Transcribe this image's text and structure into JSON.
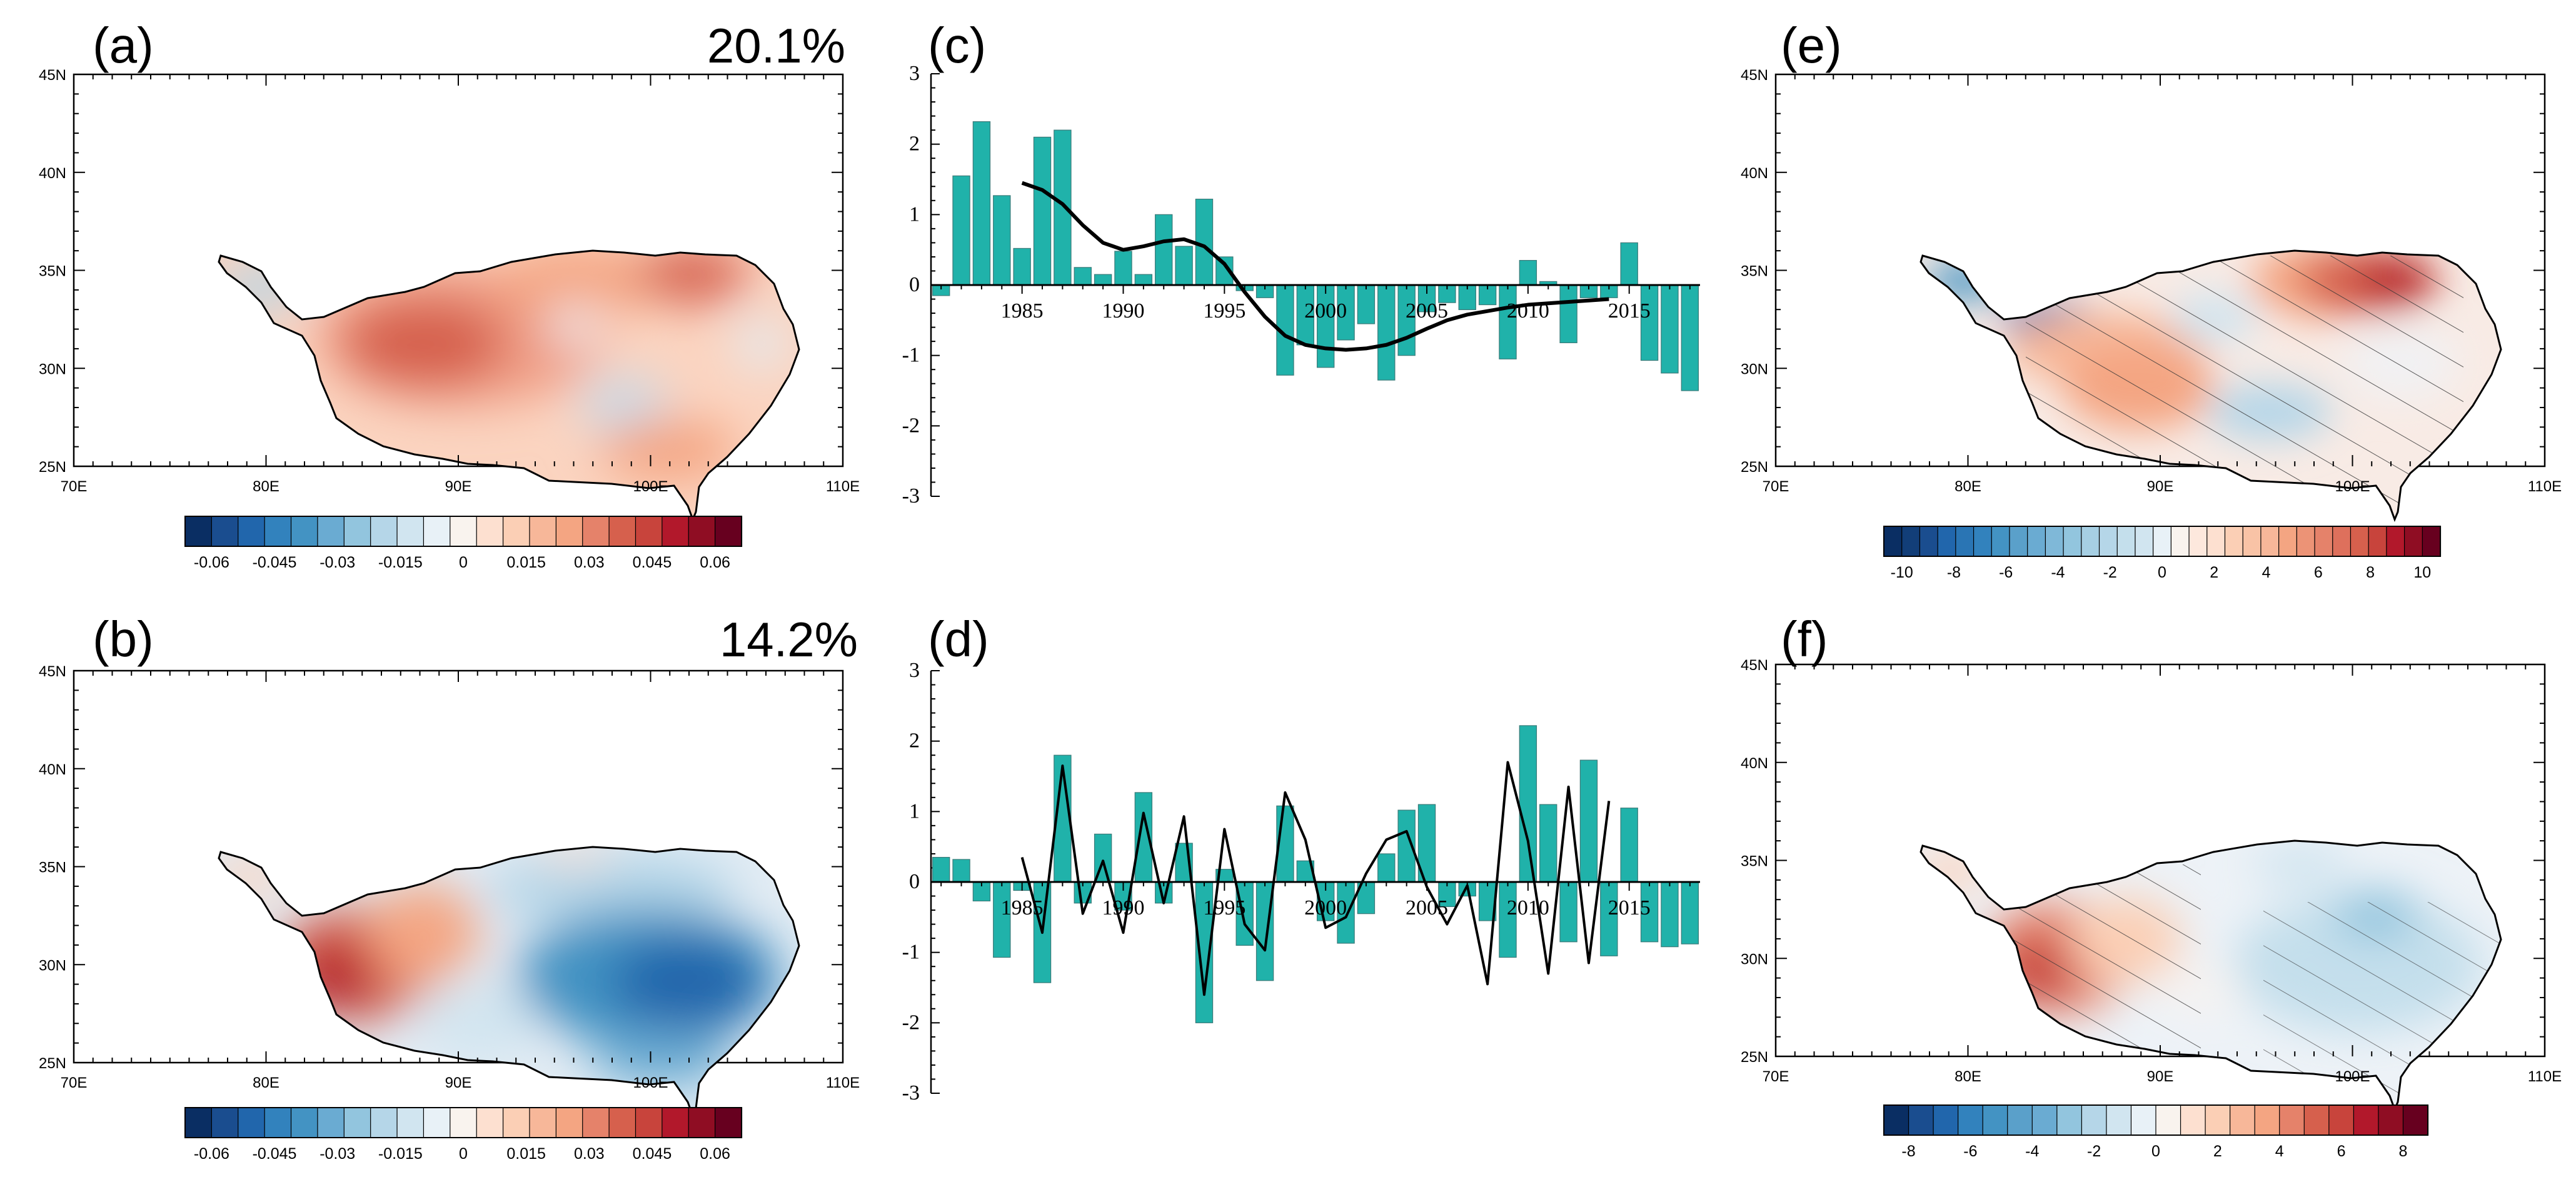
{
  "figure": {
    "panel_labels": [
      "(a)",
      "(b)",
      "(c)",
      "(d)",
      "(e)",
      "(f)"
    ],
    "variance_a": "20.1%",
    "variance_b": "14.2%"
  },
  "colors": {
    "bar": "#20B2AA",
    "bar_stroke": "#3a7a78",
    "line": "#000000",
    "outline": "#000000"
  },
  "maps": [
    {
      "id": "a",
      "x_ticks": [
        "70E",
        "80E",
        "90E",
        "100E",
        "110E"
      ],
      "y_ticks": [
        "45N",
        "40N",
        "35N",
        "30N",
        "25N"
      ],
      "colorbar": {
        "tick_labels": [
          "-0.06",
          "-0.045",
          "-0.03",
          "-0.015",
          "0",
          "0.015",
          "0.03",
          "0.045",
          "0.06"
        ],
        "colors": [
          "#0a2e63",
          "#1a4d8f",
          "#2166ac",
          "#3282bd",
          "#4393c3",
          "#6aabd2",
          "#92c5de",
          "#b5d6e8",
          "#d1e5f0",
          "#e8f1f7",
          "#f9f3ee",
          "#fde0d0",
          "#fbcfb5",
          "#f7b799",
          "#f4a582",
          "#e5826a",
          "#d6604d",
          "#c8443c",
          "#b2182b",
          "#8f0d23",
          "#67001f"
        ]
      },
      "pattern": "eof1"
    },
    {
      "id": "b",
      "x_ticks": [
        "70E",
        "80E",
        "90E",
        "100E",
        "110E"
      ],
      "y_ticks": [
        "45N",
        "40N",
        "35N",
        "30N",
        "25N"
      ],
      "colorbar": {
        "tick_labels": [
          "-0.06",
          "-0.045",
          "-0.03",
          "-0.015",
          "0",
          "0.015",
          "0.03",
          "0.045",
          "0.06"
        ],
        "colors": [
          "#0a2e63",
          "#1a4d8f",
          "#2166ac",
          "#3282bd",
          "#4393c3",
          "#6aabd2",
          "#92c5de",
          "#b5d6e8",
          "#d1e5f0",
          "#e8f1f7",
          "#f9f3ee",
          "#fde0d0",
          "#fbcfb5",
          "#f7b799",
          "#f4a582",
          "#e5826a",
          "#d6604d",
          "#c8443c",
          "#b2182b",
          "#8f0d23",
          "#67001f"
        ]
      },
      "pattern": "eof2"
    },
    {
      "id": "e",
      "x_ticks": [
        "70E",
        "80E",
        "90E",
        "100E",
        "110E"
      ],
      "y_ticks": [
        "45N",
        "40N",
        "35N",
        "30N",
        "25N"
      ],
      "colorbar": {
        "tick_labels": [
          "-10",
          "-8",
          "-6",
          "-4",
          "-2",
          "0",
          "2",
          "4",
          "6",
          "8",
          "10"
        ],
        "colors": [
          "#0a2e63",
          "#123e78",
          "#1a4d8f",
          "#2166ac",
          "#2a75b4",
          "#3282bd",
          "#4393c3",
          "#5aa0ca",
          "#6aabd2",
          "#7fb8d8",
          "#92c5de",
          "#a6cfe3",
          "#b5d6e8",
          "#c4dfec",
          "#d1e5f0",
          "#e8f1f7",
          "#f9f3ee",
          "#fde8dd",
          "#fde0d0",
          "#fbcfb5",
          "#f9c3a6",
          "#f7b799",
          "#f4a582",
          "#ec9376",
          "#e5826a",
          "#de705c",
          "#d6604d",
          "#c8443c",
          "#b2182b",
          "#8f0d23",
          "#67001f"
        ]
      },
      "pattern": "corr1"
    },
    {
      "id": "f",
      "x_ticks": [
        "70E",
        "80E",
        "90E",
        "100E",
        "110E"
      ],
      "y_ticks": [
        "45N",
        "40N",
        "35N",
        "30N",
        "25N"
      ],
      "colorbar": {
        "tick_labels": [
          "-8",
          "-6",
          "-4",
          "-2",
          "0",
          "2",
          "4",
          "6",
          "8"
        ],
        "colors": [
          "#0a2e63",
          "#1a4d8f",
          "#2166ac",
          "#3282bd",
          "#4393c3",
          "#5aa0ca",
          "#6aabd2",
          "#92c5de",
          "#b5d6e8",
          "#d1e5f0",
          "#e8f1f7",
          "#f9f3ee",
          "#fde0d0",
          "#fbcfb5",
          "#f7b799",
          "#f4a582",
          "#e5826a",
          "#d6604d",
          "#c8443c",
          "#b2182b",
          "#8f0d23",
          "#67001f"
        ]
      },
      "pattern": "corr2"
    }
  ],
  "chart_data": [
    {
      "type": "bar",
      "panel": "c",
      "title": "",
      "xlabel": "",
      "ylabel": "",
      "ylim": [
        -3,
        3
      ],
      "xlim": [
        1980.5,
        2018.5
      ],
      "y_tick_labels": [
        "3",
        "2",
        "1",
        "0",
        "-1",
        "-2",
        "-3"
      ],
      "y_tick_values": [
        3,
        2,
        1,
        0,
        -1,
        -2,
        -3
      ],
      "x_tick_labels": [
        "1985",
        "1990",
        "1995",
        "2000",
        "2005",
        "2010",
        "2015"
      ],
      "x_tick_values": [
        1985,
        1990,
        1995,
        2000,
        2005,
        2010,
        2015
      ],
      "years": [
        1981,
        1982,
        1983,
        1984,
        1985,
        1986,
        1987,
        1988,
        1989,
        1990,
        1991,
        1992,
        1993,
        1994,
        1995,
        1996,
        1997,
        1998,
        1999,
        2000,
        2001,
        2002,
        2003,
        2004,
        2005,
        2006,
        2007,
        2008,
        2009,
        2010,
        2011,
        2012,
        2013,
        2014,
        2015,
        2016,
        2017,
        2018
      ],
      "values": [
        -0.15,
        1.55,
        2.32,
        1.27,
        0.52,
        2.1,
        2.2,
        0.25,
        0.15,
        0.48,
        0.15,
        1.0,
        0.55,
        1.22,
        0.4,
        -0.08,
        -0.18,
        -1.28,
        -0.85,
        -1.17,
        -0.78,
        -0.55,
        -1.35,
        -1.0,
        -0.38,
        -0.25,
        -0.35,
        -0.28,
        -1.05,
        0.35,
        0.05,
        -0.82,
        -0.18,
        -0.18,
        0.6,
        -1.07,
        -1.25,
        -1.5
      ],
      "series": [
        {
          "name": "smoothed trend",
          "x": [
            1985,
            1986,
            1987,
            1988,
            1989,
            1990,
            1991,
            1992,
            1993,
            1994,
            1995,
            1996,
            1997,
            1998,
            1999,
            2000,
            2001,
            2002,
            2003,
            2004,
            2005,
            2006,
            2007,
            2008,
            2009,
            2010,
            2011,
            2012,
            2013,
            2014
          ],
          "y": [
            1.45,
            1.35,
            1.15,
            0.85,
            0.6,
            0.5,
            0.55,
            0.62,
            0.65,
            0.55,
            0.3,
            -0.1,
            -0.45,
            -0.72,
            -0.85,
            -0.9,
            -0.92,
            -0.9,
            -0.85,
            -0.75,
            -0.62,
            -0.5,
            -0.42,
            -0.37,
            -0.32,
            -0.28,
            -0.26,
            -0.24,
            -0.22,
            -0.2
          ]
        }
      ]
    },
    {
      "type": "bar",
      "panel": "d",
      "title": "",
      "xlabel": "",
      "ylabel": "",
      "ylim": [
        -3,
        3
      ],
      "xlim": [
        1980.5,
        2018.5
      ],
      "y_tick_labels": [
        "3",
        "2",
        "1",
        "0",
        "-1",
        "-2",
        "-3"
      ],
      "y_tick_values": [
        3,
        2,
        1,
        0,
        -1,
        -2,
        -3
      ],
      "x_tick_labels": [
        "1985",
        "1990",
        "1995",
        "2000",
        "2005",
        "2010",
        "2015"
      ],
      "x_tick_values": [
        1985,
        1990,
        1995,
        2000,
        2005,
        2010,
        2015
      ],
      "years": [
        1981,
        1982,
        1983,
        1984,
        1985,
        1986,
        1987,
        1988,
        1989,
        1990,
        1991,
        1992,
        1993,
        1994,
        1995,
        1996,
        1997,
        1998,
        1999,
        2000,
        2001,
        2002,
        2003,
        2004,
        2005,
        2006,
        2007,
        2008,
        2009,
        2010,
        2011,
        2012,
        2013,
        2014,
        2015,
        2016,
        2017,
        2018
      ],
      "values": [
        0.35,
        0.32,
        -0.27,
        -1.07,
        -0.12,
        -1.43,
        1.8,
        -0.3,
        0.68,
        -0.4,
        1.27,
        -0.3,
        0.55,
        -2.0,
        0.18,
        -0.9,
        -1.4,
        1.08,
        0.3,
        -0.55,
        -0.87,
        -0.45,
        0.4,
        1.02,
        1.1,
        -0.35,
        -0.2,
        -0.55,
        -1.07,
        2.22,
        1.1,
        -0.85,
        1.73,
        -1.05,
        1.05,
        -0.85,
        -0.92,
        -0.88
      ],
      "series": [
        {
          "name": "line",
          "x": [
            1985,
            1986,
            1987,
            1988,
            1989,
            1990,
            1991,
            1992,
            1993,
            1994,
            1995,
            1996,
            1997,
            1998,
            1999,
            2000,
            2001,
            2002,
            2003,
            2004,
            2005,
            2006,
            2007,
            2008,
            2009,
            2010,
            2011,
            2012,
            2013,
            2014
          ],
          "y": [
            0.35,
            -0.72,
            1.65,
            -0.45,
            0.3,
            -0.72,
            0.98,
            -0.3,
            0.93,
            -1.6,
            0.75,
            -0.6,
            -0.97,
            1.27,
            0.6,
            -0.65,
            -0.5,
            0.12,
            0.6,
            0.72,
            -0.07,
            -0.6,
            -0.05,
            -1.45,
            1.7,
            0.58,
            -1.3,
            1.35,
            -1.15,
            1.15
          ]
        }
      ]
    }
  ]
}
